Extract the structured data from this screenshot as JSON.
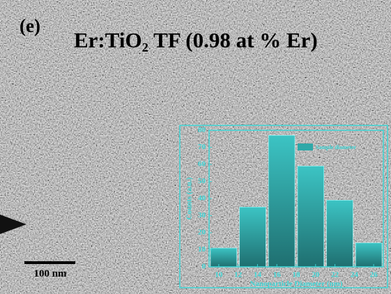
{
  "panel_label": "(e)",
  "title": "Er:TiO₂ TF (0.98 at % Er)",
  "scale_bar": "100 nm",
  "chart_data": {
    "type": "histogram",
    "bins": [
      9,
      12,
      15,
      18,
      21,
      24,
      27
    ],
    "values": [
      11,
      35,
      77,
      59,
      39,
      14
    ],
    "series_name": "Sample diameter",
    "x_label": "Nanoparticle Diameter (nm)",
    "y_label": "Counts (a.u.)",
    "xlim": [
      9,
      27
    ],
    "xticks": [
      10,
      12,
      14,
      16,
      18,
      20,
      22,
      24,
      26
    ],
    "ylim": [
      0,
      80
    ],
    "yticks": [
      0,
      10,
      20,
      30,
      40,
      50,
      60,
      70,
      80
    ],
    "color": "#2fa8a8",
    "axis_color": "#3fd6d6"
  }
}
